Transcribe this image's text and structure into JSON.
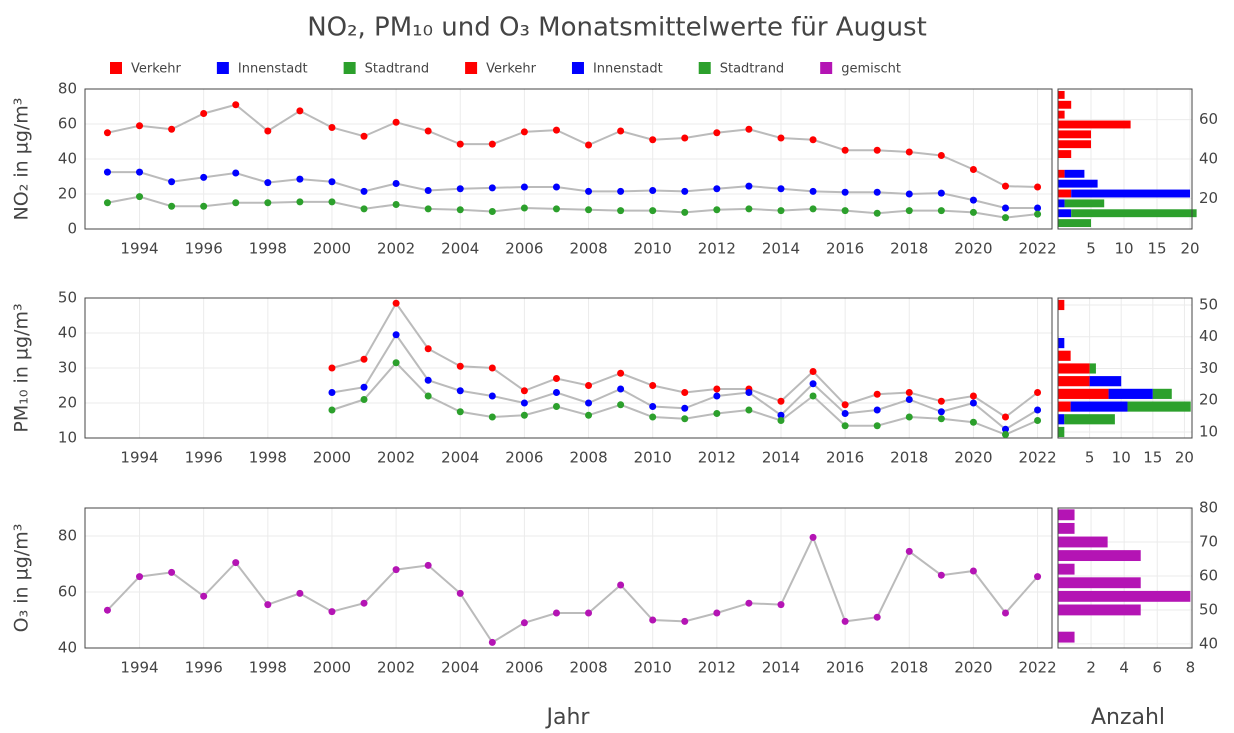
{
  "title": "NO₂, PM₁₀ und O₃ Monatsmittelwerte für August",
  "xlabel": "Jahr",
  "x2label": "Anzahl",
  "chart_data": [
    {
      "type": "line",
      "ylabel": "NO₂ in µg/m³",
      "grid": true,
      "line_color": "#bbbbbb",
      "x": [
        1993,
        1994,
        1995,
        1996,
        1997,
        1998,
        1999,
        2000,
        2001,
        2002,
        2003,
        2004,
        2005,
        2006,
        2007,
        2008,
        2009,
        2010,
        2011,
        2012,
        2013,
        2014,
        2015,
        2016,
        2017,
        2018,
        2019,
        2020,
        2021,
        2022
      ],
      "xlim": [
        1992.3,
        2022.45
      ],
      "xticks": [
        1994,
        1996,
        1998,
        2000,
        2002,
        2004,
        2006,
        2008,
        2010,
        2012,
        2014,
        2016,
        2018,
        2020,
        2022
      ],
      "ylim": [
        0,
        80
      ],
      "yticks": [
        0,
        20,
        40,
        60,
        80
      ],
      "series": [
        {
          "name": "Verkehr",
          "color": "#ff0000",
          "values": [
            55,
            59,
            57,
            66,
            71,
            56,
            67.5,
            58,
            53,
            61,
            56,
            48.5,
            48.5,
            55.5,
            56.5,
            48,
            56,
            51,
            52,
            55,
            57,
            52,
            51,
            45,
            45,
            44,
            42,
            34,
            24.5,
            24
          ]
        },
        {
          "name": "Innenstadt",
          "color": "#0000ff",
          "values": [
            32.5,
            32.5,
            27,
            29.5,
            32,
            26.5,
            28.5,
            27,
            21.5,
            26,
            22,
            23,
            23.5,
            24,
            24,
            21.5,
            21.5,
            22,
            21.5,
            23,
            24.5,
            23,
            21.5,
            21,
            21,
            20,
            20.5,
            16.5,
            12,
            12
          ]
        },
        {
          "name": "Stadtrand",
          "color": "#2ca02c",
          "values": [
            15,
            18.5,
            13,
            13,
            15,
            15,
            15.5,
            15.5,
            11.5,
            14,
            11.5,
            11,
            10,
            12,
            11.5,
            11,
            10.5,
            10.5,
            9.5,
            11,
            11.5,
            10.5,
            11.5,
            10.5,
            9,
            10.5,
            10.5,
            9.5,
            6.5,
            8.5
          ]
        }
      ]
    },
    {
      "type": "histogram",
      "orientation": "horizontal",
      "grid": true,
      "bins": [
        5,
        10,
        15,
        20,
        25,
        30,
        35,
        40,
        45,
        50,
        55,
        60,
        65,
        70,
        75
      ],
      "xlim": [
        0,
        20.3
      ],
      "xticks": [
        5,
        10,
        15,
        20
      ],
      "ylim": [
        4.5,
        75.5
      ],
      "yticks": [
        20,
        40,
        60
      ],
      "series": [
        {
          "name": "Verkehr",
          "color": "#ff0000",
          "values": [
            0,
            0,
            0,
            2,
            0,
            1,
            0,
            2,
            5,
            5,
            11,
            1,
            2,
            1
          ]
        },
        {
          "name": "Innenstadt",
          "color": "#0000ff",
          "values": [
            0,
            2,
            1,
            18,
            6,
            3,
            0,
            0,
            0,
            0,
            0,
            0,
            0,
            0
          ]
        },
        {
          "name": "Stadtrand",
          "color": "#2ca02c",
          "values": [
            5,
            19,
            6,
            0,
            0,
            0,
            0,
            0,
            0,
            0,
            0,
            0,
            0,
            0
          ]
        }
      ]
    },
    {
      "type": "line",
      "ylabel": "PM₁₀ in µg/m³",
      "grid": true,
      "line_color": "#bbbbbb",
      "x": [
        1993,
        1994,
        1995,
        1996,
        1997,
        1998,
        1999,
        2000,
        2001,
        2002,
        2003,
        2004,
        2005,
        2006,
        2007,
        2008,
        2009,
        2010,
        2011,
        2012,
        2013,
        2014,
        2015,
        2016,
        2017,
        2018,
        2019,
        2020,
        2021,
        2022
      ],
      "xlim": [
        1992.3,
        2022.45
      ],
      "xticks": [
        1994,
        1996,
        1998,
        2000,
        2002,
        2004,
        2006,
        2008,
        2010,
        2012,
        2014,
        2016,
        2018,
        2020,
        2022
      ],
      "ylim": [
        10,
        50
      ],
      "yticks": [
        10,
        20,
        30,
        40,
        50
      ],
      "series": [
        {
          "name": "Verkehr",
          "color": "#ff0000",
          "values": [
            null,
            null,
            null,
            null,
            null,
            null,
            null,
            30,
            32.5,
            48.5,
            35.5,
            30.5,
            30,
            23.5,
            27,
            25,
            28.5,
            25,
            23,
            24,
            24,
            20.5,
            29,
            19.5,
            22.5,
            23,
            20.5,
            22,
            16,
            23
          ]
        },
        {
          "name": "Innenstadt",
          "color": "#0000ff",
          "values": [
            null,
            null,
            null,
            null,
            null,
            null,
            null,
            23,
            24.5,
            39.5,
            26.5,
            23.5,
            22,
            20,
            23,
            20,
            24,
            19,
            18.5,
            22,
            23,
            16.5,
            25.5,
            17,
            18,
            21,
            17.5,
            20,
            12.5,
            18
          ]
        },
        {
          "name": "Stadtrand",
          "color": "#2ca02c",
          "values": [
            null,
            null,
            null,
            null,
            null,
            null,
            null,
            18,
            21,
            31.5,
            22,
            17.5,
            16,
            16.5,
            19,
            16.5,
            19.5,
            16,
            15.5,
            17,
            18,
            15,
            22,
            13.5,
            13.5,
            16,
            15.5,
            14.5,
            11,
            15
          ]
        }
      ]
    },
    {
      "type": "histogram",
      "orientation": "horizontal",
      "grid": true,
      "bins": [
        8,
        12,
        16,
        20,
        24,
        28,
        32,
        36,
        40,
        44,
        48,
        52
      ],
      "xlim": [
        0,
        21.2
      ],
      "xticks": [
        5,
        10,
        15,
        20
      ],
      "ylim": [
        8.1,
        52.2
      ],
      "yticks": [
        10,
        20,
        30,
        40,
        50
      ],
      "series": [
        {
          "name": "Verkehr",
          "color": "#ff0000",
          "values": [
            0,
            0,
            2,
            8,
            5,
            5,
            2,
            0,
            0,
            0,
            1
          ]
        },
        {
          "name": "Innenstadt",
          "color": "#0000ff",
          "values": [
            0,
            1,
            9,
            7,
            5,
            0,
            0,
            1,
            0,
            0,
            0
          ]
        },
        {
          "name": "Stadtrand",
          "color": "#2ca02c",
          "values": [
            1,
            8,
            10,
            3,
            0,
            1,
            0,
            0,
            0,
            0,
            0
          ]
        }
      ]
    },
    {
      "type": "line",
      "ylabel": "O₃ in µg/m³",
      "grid": true,
      "line_color": "#bbbbbb",
      "x": [
        1993,
        1994,
        1995,
        1996,
        1997,
        1998,
        1999,
        2000,
        2001,
        2002,
        2003,
        2004,
        2005,
        2006,
        2007,
        2008,
        2009,
        2010,
        2011,
        2012,
        2013,
        2014,
        2015,
        2016,
        2017,
        2018,
        2019,
        2020,
        2021,
        2022
      ],
      "xlim": [
        1992.3,
        2022.45
      ],
      "xticks": [
        1994,
        1996,
        1998,
        2000,
        2002,
        2004,
        2006,
        2008,
        2010,
        2012,
        2014,
        2016,
        2018,
        2020,
        2022
      ],
      "ylim": [
        40,
        90
      ],
      "yticks": [
        40,
        60,
        80
      ],
      "series": [
        {
          "name": "gemischt",
          "color": "#b414b4",
          "values": [
            53.5,
            65.5,
            67,
            58.5,
            70.5,
            55.5,
            59.5,
            53,
            56,
            68,
            69.5,
            59.5,
            42,
            49,
            52.5,
            52.5,
            62.5,
            50,
            49.5,
            52.5,
            56,
            55.5,
            79.5,
            49.5,
            51,
            74.5,
            66,
            67.5,
            52.5,
            65.5
          ]
        }
      ]
    },
    {
      "type": "histogram",
      "orientation": "horizontal",
      "grid": true,
      "bins": [
        40,
        44,
        48,
        52,
        56,
        60,
        64,
        68,
        72,
        76,
        80
      ],
      "xlim": [
        0,
        8.1
      ],
      "xticks": [
        2,
        4,
        6,
        8
      ],
      "ylim": [
        38.8,
        80
      ],
      "yticks": [
        40,
        50,
        60,
        70,
        80
      ],
      "series": [
        {
          "name": "gemischt",
          "color": "#b414b4",
          "values": [
            1,
            0,
            5,
            8,
            5,
            1,
            5,
            3,
            1,
            1
          ]
        }
      ]
    }
  ]
}
